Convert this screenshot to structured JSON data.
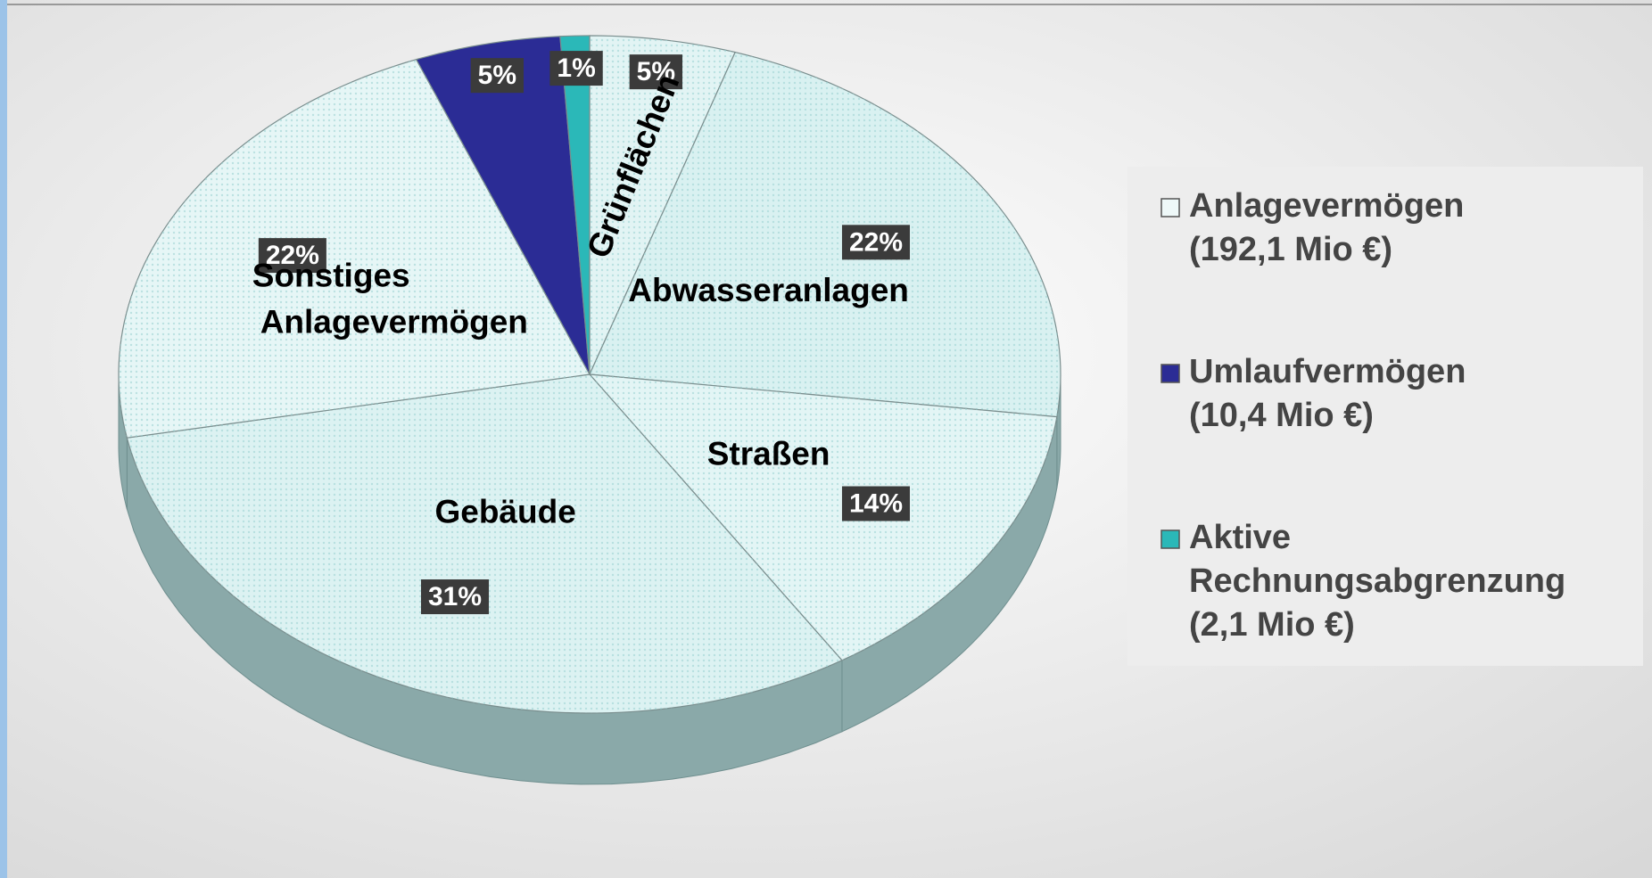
{
  "chart_data": {
    "type": "pie",
    "categories": [
      "Grünflächen",
      "Abwasseranlagen",
      "Straßen",
      "Gebäude",
      "Sonstiges Anlagevermögen",
      null,
      null
    ],
    "values": [
      5,
      22,
      14,
      31,
      22,
      5,
      1
    ],
    "value_labels": [
      "5%",
      "22%",
      "14%",
      "31%",
      "22%",
      "5%",
      "1%"
    ],
    "colors": [
      "#e2f4f4",
      "#d9f1f1",
      "#e3f5f5",
      "#dcf2f2",
      "#e6f6f6",
      "#2b2c95",
      "#2bb8b8"
    ],
    "legend": [
      {
        "lines": [
          "Anlagevermögen",
          "(192,1 Mio €)"
        ],
        "color": "#eef8f8"
      },
      {
        "lines": [
          "Umlaufvermögen",
          "(10,4 Mio €)"
        ],
        "color": "#2b2c95"
      },
      {
        "lines": [
          "Aktive",
          "Rechnungsabgrenzung",
          "(2,1 Mio €)"
        ],
        "color": "#2bb8b8"
      }
    ]
  }
}
